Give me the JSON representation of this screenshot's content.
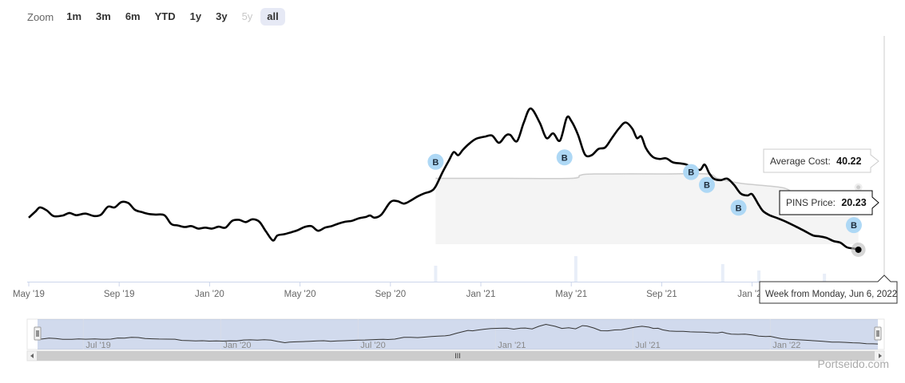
{
  "zoom": {
    "label": "Zoom",
    "buttons": [
      {
        "label": "1m",
        "state": "normal"
      },
      {
        "label": "3m",
        "state": "normal"
      },
      {
        "label": "6m",
        "state": "normal"
      },
      {
        "label": "YTD",
        "state": "normal"
      },
      {
        "label": "1y",
        "state": "normal"
      },
      {
        "label": "3y",
        "state": "normal"
      },
      {
        "label": "5y",
        "state": "disabled"
      },
      {
        "label": "all",
        "state": "active"
      }
    ]
  },
  "chart_data": {
    "type": "line",
    "x_tick_labels": [
      "May '19",
      "Sep '19",
      "Jan '20",
      "May '20",
      "Sep '20",
      "Jan '21",
      "May '21",
      "Sep '21",
      "Jan '22"
    ],
    "x_tick_months": [
      0,
      4,
      8,
      12,
      16,
      20,
      24,
      28,
      32
    ],
    "x_start": "May '19",
    "y_range": [
      10,
      90
    ],
    "series": [
      {
        "name": "PINS Price",
        "color": "#000000",
        "points": [
          [
            0,
            30.5
          ],
          [
            0.3,
            32.5
          ],
          [
            0.5,
            33.8
          ],
          [
            0.8,
            32.8
          ],
          [
            1.1,
            31.0
          ],
          [
            1.5,
            31.2
          ],
          [
            1.8,
            32.0
          ],
          [
            2.1,
            31.3
          ],
          [
            2.5,
            31.8
          ],
          [
            2.9,
            31.0
          ],
          [
            3.2,
            31.5
          ],
          [
            3.5,
            34.0
          ],
          [
            3.8,
            33.8
          ],
          [
            4.1,
            35.5
          ],
          [
            4.4,
            35.2
          ],
          [
            4.7,
            33.0
          ],
          [
            5.0,
            32.3
          ],
          [
            5.3,
            31.7
          ],
          [
            5.6,
            31.5
          ],
          [
            6.0,
            31.3
          ],
          [
            6.3,
            28.5
          ],
          [
            6.6,
            28.0
          ],
          [
            6.9,
            27.5
          ],
          [
            7.2,
            27.8
          ],
          [
            7.5,
            27.0
          ],
          [
            7.8,
            27.3
          ],
          [
            8.1,
            27.0
          ],
          [
            8.4,
            27.6
          ],
          [
            8.7,
            27.3
          ],
          [
            9.0,
            29.5
          ],
          [
            9.3,
            29.8
          ],
          [
            9.6,
            29.1
          ],
          [
            9.9,
            30.0
          ],
          [
            10.2,
            29.2
          ],
          [
            10.5,
            26.0
          ],
          [
            10.8,
            23.2
          ],
          [
            11.0,
            24.8
          ],
          [
            11.3,
            25.2
          ],
          [
            11.6,
            25.8
          ],
          [
            11.9,
            26.5
          ],
          [
            12.2,
            27.5
          ],
          [
            12.5,
            27.8
          ],
          [
            12.8,
            26.3
          ],
          [
            13.1,
            27.3
          ],
          [
            13.4,
            27.8
          ],
          [
            13.7,
            28.6
          ],
          [
            14.0,
            29.2
          ],
          [
            14.3,
            29.5
          ],
          [
            14.6,
            30.3
          ],
          [
            14.9,
            30.7
          ],
          [
            15.1,
            31.2
          ],
          [
            15.3,
            30.5
          ],
          [
            15.6,
            31.5
          ],
          [
            16.0,
            35.5
          ],
          [
            16.3,
            35.8
          ],
          [
            16.6,
            35.0
          ],
          [
            16.9,
            36.0
          ],
          [
            17.2,
            37.3
          ],
          [
            17.5,
            38.3
          ],
          [
            17.8,
            39.0
          ],
          [
            18.0,
            40.5
          ],
          [
            18.3,
            45.0
          ],
          [
            18.6,
            49.0
          ],
          [
            18.8,
            51.5
          ],
          [
            19.0,
            50.5
          ],
          [
            19.2,
            52.2
          ],
          [
            19.5,
            54.3
          ],
          [
            19.8,
            55.8
          ],
          [
            20.2,
            56.5
          ],
          [
            20.5,
            56.8
          ],
          [
            20.8,
            54.5
          ],
          [
            21.1,
            56.8
          ],
          [
            21.3,
            57.0
          ],
          [
            21.6,
            55.0
          ],
          [
            21.9,
            61.0
          ],
          [
            22.2,
            65.5
          ],
          [
            22.6,
            61.0
          ],
          [
            22.9,
            56.0
          ],
          [
            23.2,
            57.5
          ],
          [
            23.5,
            55.2
          ],
          [
            23.8,
            62.5
          ],
          [
            24.0,
            61.5
          ],
          [
            24.3,
            57.0
          ],
          [
            24.6,
            50.8
          ],
          [
            24.9,
            50.5
          ],
          [
            25.2,
            52.5
          ],
          [
            25.5,
            53.0
          ],
          [
            25.8,
            56.0
          ],
          [
            26.1,
            59.0
          ],
          [
            26.4,
            61.0
          ],
          [
            26.7,
            59.0
          ],
          [
            26.9,
            56.0
          ],
          [
            27.1,
            56.5
          ],
          [
            27.3,
            52.8
          ],
          [
            27.6,
            50.0
          ],
          [
            27.9,
            49.3
          ],
          [
            28.2,
            49.5
          ],
          [
            28.5,
            48.2
          ],
          [
            28.8,
            47.9
          ],
          [
            29.1,
            47.5
          ],
          [
            29.4,
            46.4
          ],
          [
            29.7,
            45.8
          ],
          [
            29.9,
            47.5
          ],
          [
            30.1,
            44.8
          ],
          [
            30.3,
            43.0
          ],
          [
            30.6,
            42.5
          ],
          [
            30.9,
            43.0
          ],
          [
            31.2,
            41.0
          ],
          [
            31.5,
            38.2
          ],
          [
            31.8,
            37.6
          ],
          [
            32.0,
            38.0
          ],
          [
            32.3,
            34.5
          ],
          [
            32.5,
            32.5
          ],
          [
            32.8,
            31.2
          ],
          [
            33.1,
            30.4
          ],
          [
            33.5,
            29.2
          ],
          [
            33.9,
            27.8
          ],
          [
            34.3,
            26.3
          ],
          [
            34.7,
            24.8
          ],
          [
            35.0,
            24.5
          ],
          [
            35.3,
            24.0
          ],
          [
            35.6,
            23.0
          ],
          [
            35.9,
            22.5
          ],
          [
            36.2,
            21.0
          ],
          [
            36.5,
            20.6
          ],
          [
            36.7,
            20.23
          ]
        ],
        "current_value": 20.23
      },
      {
        "name": "Average Cost",
        "color": "#cccccc",
        "points": [
          [
            18.0,
            43.1
          ],
          [
            21.0,
            43.1
          ],
          [
            24.0,
            43.1
          ],
          [
            24.4,
            44.1
          ],
          [
            25.0,
            44.5
          ],
          [
            28.0,
            44.5
          ],
          [
            30.0,
            44.5
          ],
          [
            30.5,
            43.0
          ],
          [
            31.5,
            41.5
          ],
          [
            32.8,
            40.6
          ],
          [
            33.5,
            39.8
          ],
          [
            34.0,
            37.7
          ],
          [
            34.8,
            35.5
          ],
          [
            35.5,
            34.1
          ],
          [
            36.1,
            33.7
          ],
          [
            36.7,
            40.22
          ]
        ],
        "current_value": 40.22
      }
    ],
    "buy_markers": [
      {
        "label": "B",
        "x": 18.0,
        "y": 48.4
      },
      {
        "label": "B",
        "x": 23.7,
        "y": 49.8
      },
      {
        "label": "B",
        "x": 29.3,
        "y": 45.1
      },
      {
        "label": "B",
        "x": 30.0,
        "y": 41.0
      },
      {
        "label": "B",
        "x": 31.4,
        "y": 33.7
      },
      {
        "label": "B",
        "x": 36.5,
        "y": 28.1
      }
    ],
    "tooltip": {
      "avg_cost_label": "Average Cost:",
      "avg_cost_value": "40.22",
      "price_label": "PINS Price:",
      "price_value": "20.23",
      "date_label": "Week from Monday, Jun 6, 2022"
    },
    "navigator": {
      "x_tick_labels": [
        "Jul '19",
        "Jan '20",
        "Jul '20",
        "Jan '21",
        "Jul '21",
        "Jan '22"
      ],
      "x_tick_months": [
        2,
        8,
        14,
        20,
        26,
        32
      ],
      "scroll_handle": "III"
    }
  },
  "branding": {
    "watermark": "Portseido.com"
  }
}
